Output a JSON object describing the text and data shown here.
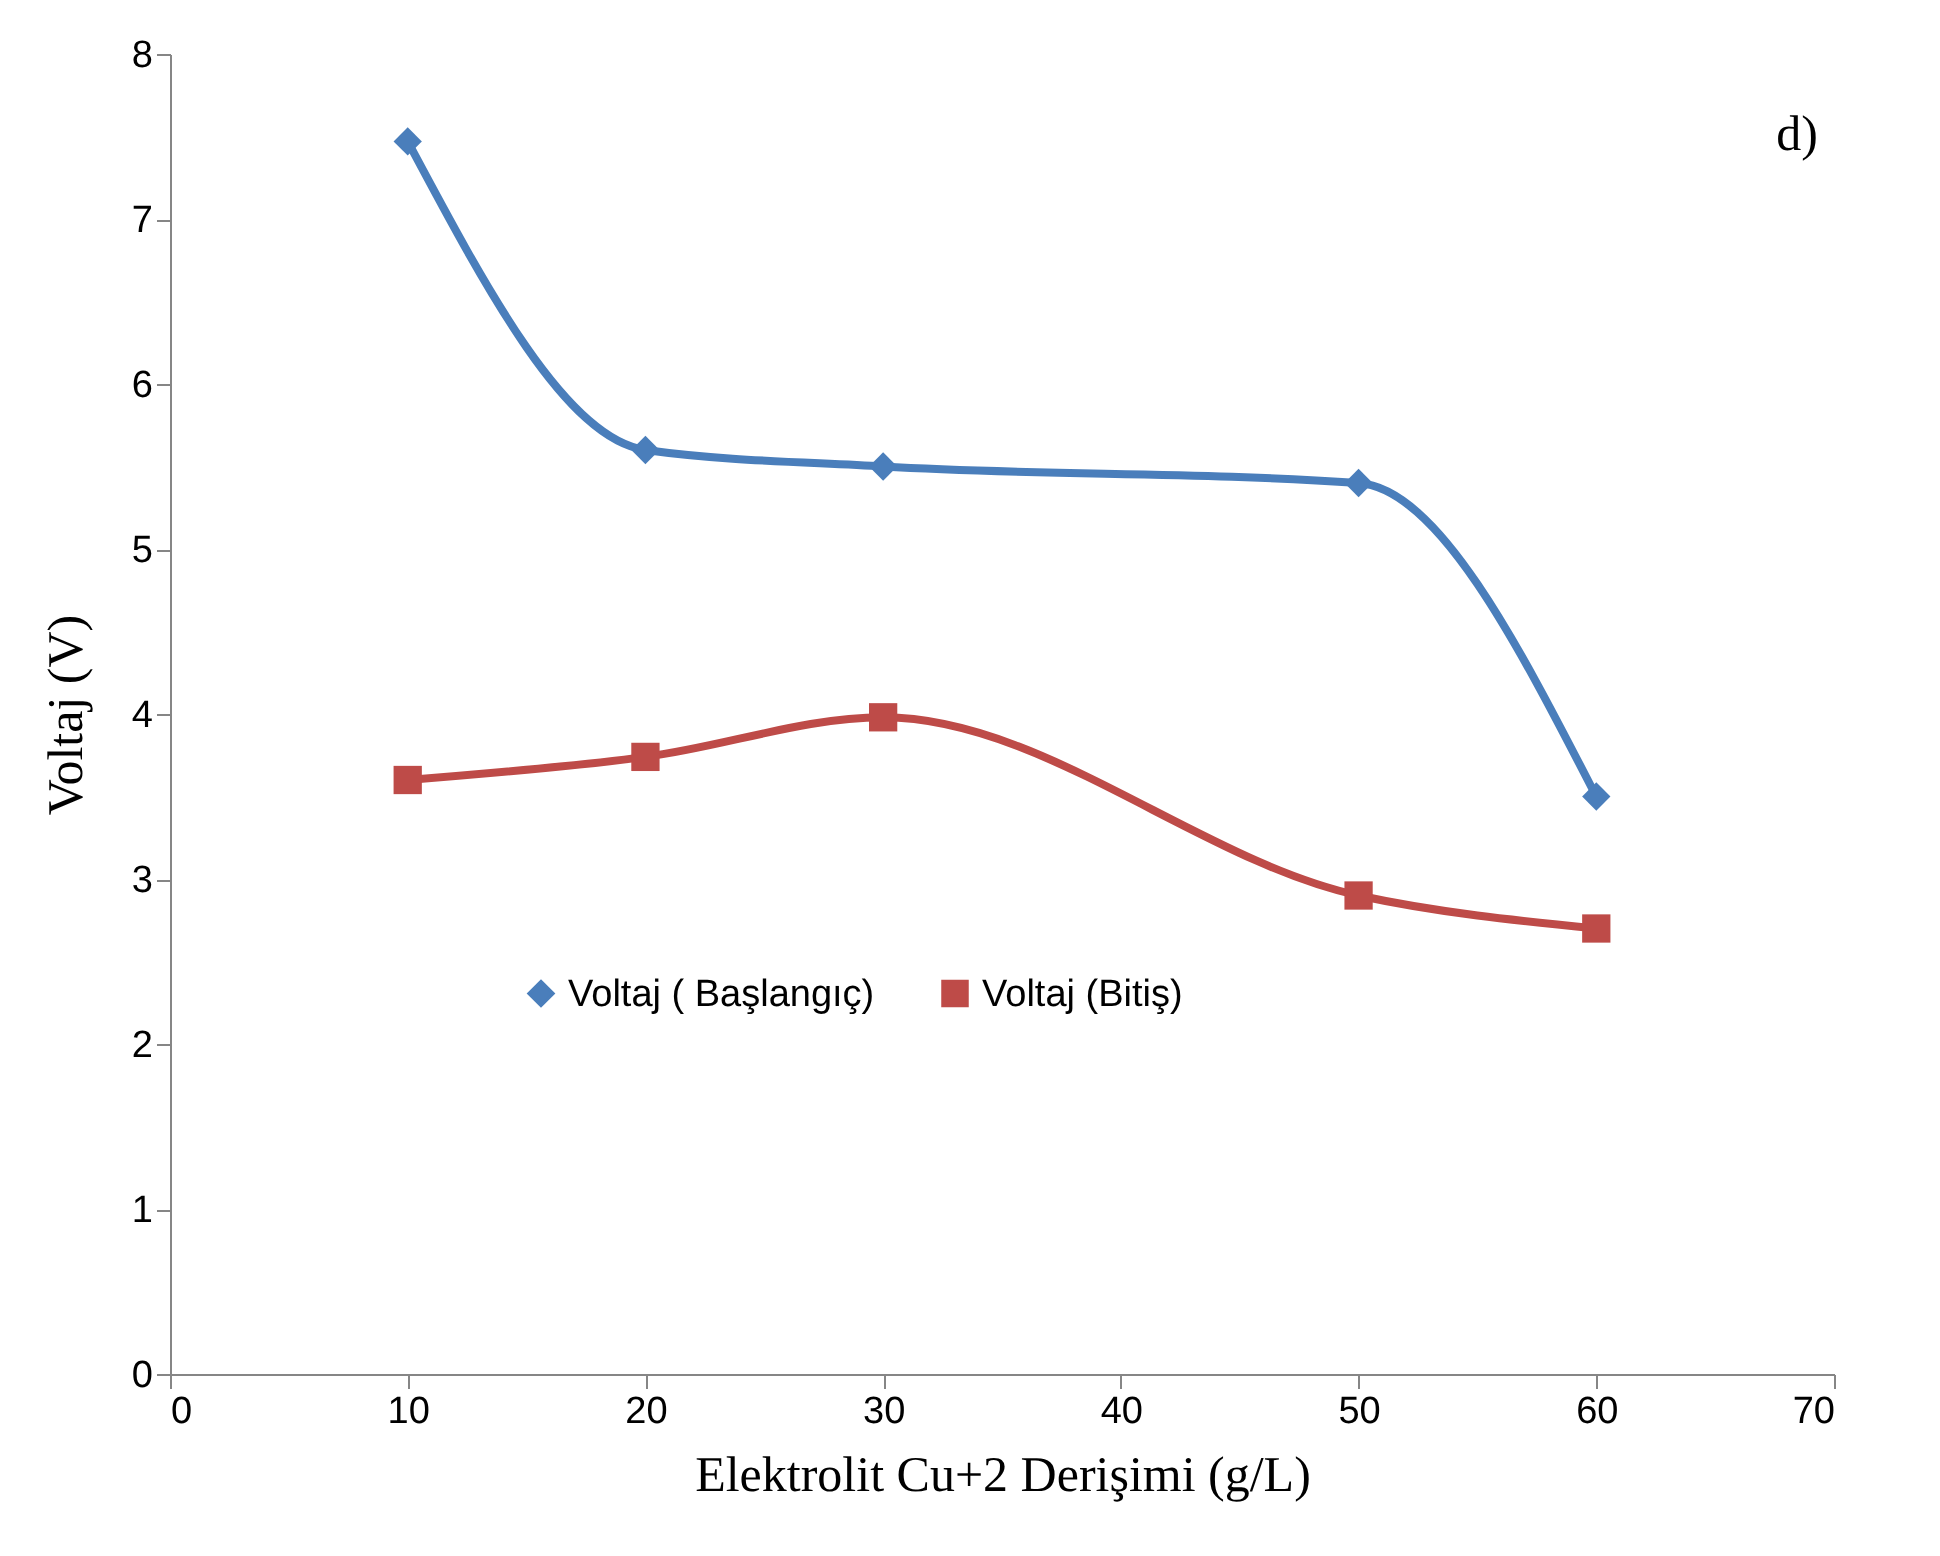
{
  "chart_data": {
    "type": "line",
    "xlabel": "Elektrolit Cu+2 Derişimi (g/L)",
    "ylabel": "Voltaj (V)",
    "x": [
      10,
      20,
      30,
      50,
      60
    ],
    "series": [
      {
        "name": "Voltaj ( Başlangıç)",
        "color": "#4a7ebb",
        "marker": "diamond",
        "values": [
          7.47,
          5.6,
          5.5,
          5.4,
          3.5
        ]
      },
      {
        "name": "Voltaj (Bitiş)",
        "color": "#be4b48",
        "marker": "square",
        "values": [
          3.6,
          3.74,
          3.98,
          2.9,
          2.7
        ]
      }
    ],
    "xlim": [
      0,
      70
    ],
    "xticks": [
      0,
      10,
      20,
      30,
      40,
      50,
      60,
      70
    ],
    "ylim": [
      0,
      8
    ],
    "yticks": [
      0,
      1,
      2,
      3,
      4,
      5,
      6,
      7,
      8
    ],
    "grid": false,
    "legend": "bottom",
    "line_style": "solid",
    "annotations": [
      "d)"
    ]
  }
}
